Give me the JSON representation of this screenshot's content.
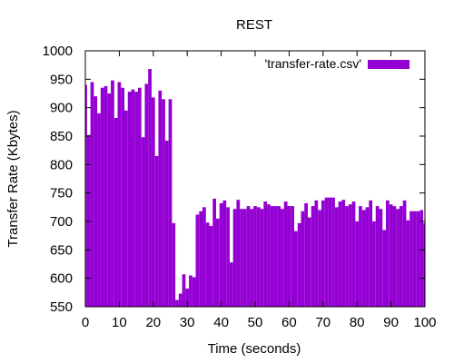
{
  "colors": {
    "series": "#9400d3",
    "axis": "#000000",
    "background": "#ffffff"
  },
  "chart_data": {
    "type": "bar",
    "title": "REST",
    "xlabel": "Time (seconds)",
    "ylabel": "Transfer Rate (Kbytes)",
    "xlim": [
      0,
      100
    ],
    "ylim": [
      550,
      1000
    ],
    "grid": false,
    "legend_position": "top-right",
    "xticks": [
      0,
      10,
      20,
      30,
      40,
      50,
      60,
      70,
      80,
      90,
      100
    ],
    "yticks": [
      550,
      600,
      650,
      700,
      750,
      800,
      850,
      900,
      950,
      1000
    ],
    "series": [
      {
        "name": "'transfer-rate.csv'",
        "x": [
          0,
          1,
          2,
          3,
          4,
          5,
          6,
          7,
          8,
          9,
          10,
          11,
          12,
          13,
          14,
          15,
          16,
          17,
          18,
          19,
          20,
          21,
          22,
          23,
          24,
          25,
          26,
          27,
          28,
          29,
          30,
          31,
          32,
          33,
          34,
          35,
          36,
          37,
          38,
          39,
          40,
          41,
          42,
          43,
          44,
          45,
          46,
          47,
          48,
          49,
          50,
          51,
          52,
          53,
          54,
          55,
          56,
          57,
          58,
          59,
          60,
          61,
          62,
          63,
          64,
          65,
          66,
          67,
          68,
          69,
          70,
          71,
          72,
          73,
          74,
          75,
          76,
          77,
          78,
          79,
          80,
          81,
          82,
          83,
          84,
          85,
          86,
          87,
          88,
          89,
          90,
          91,
          92,
          93,
          94,
          95,
          96,
          97,
          98,
          99,
          100
        ],
        "values": [
          940,
          852,
          945,
          920,
          890,
          935,
          938,
          925,
          948,
          882,
          945,
          935,
          895,
          928,
          932,
          928,
          935,
          848,
          942,
          968,
          918,
          815,
          930,
          915,
          842,
          915,
          697,
          562,
          573,
          607,
          582,
          605,
          602,
          712,
          718,
          725,
          698,
          692,
          740,
          705,
          732,
          737,
          725,
          628,
          722,
          738,
          722,
          722,
          727,
          722,
          727,
          725,
          722,
          735,
          730,
          727,
          727,
          727,
          722,
          735,
          727,
          727,
          683,
          697,
          718,
          732,
          707,
          727,
          737,
          720,
          737,
          742,
          742,
          742,
          725,
          735,
          738,
          727,
          730,
          735,
          700,
          727,
          720,
          725,
          737,
          700,
          727,
          722,
          685,
          737,
          730,
          727,
          722,
          727,
          737,
          702,
          718,
          718,
          718,
          720,
          697
        ]
      }
    ]
  }
}
